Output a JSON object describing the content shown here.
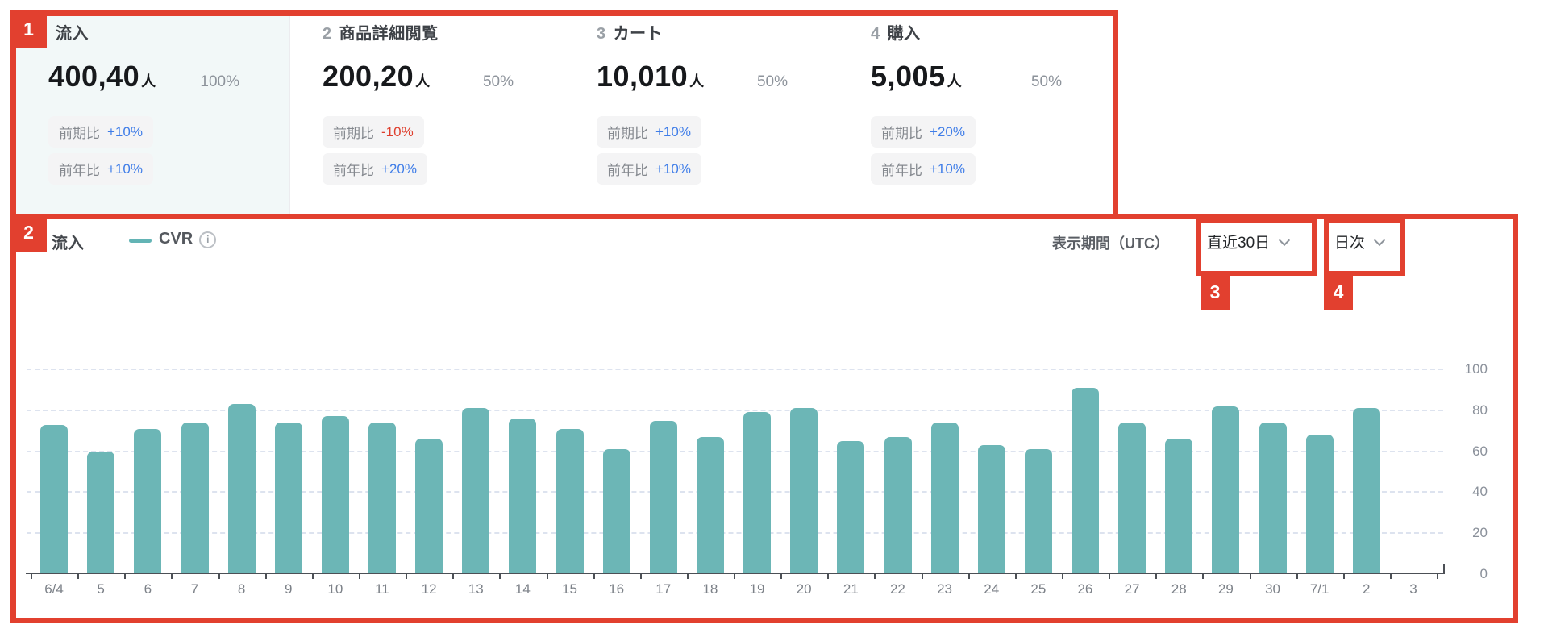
{
  "colors": {
    "annotation_red": "#e2402f",
    "bar_teal": "#6cb6b6",
    "positive_blue": "#3f7de8",
    "negative_red": "#df3f2e",
    "highlight_card_bg": "#f2f8f8",
    "chip_bg": "#f4f4f5"
  },
  "funnel": {
    "steps": [
      {
        "index": "",
        "title": "流入",
        "value": "400,40",
        "unit": "人",
        "rate": "100%",
        "prev_period_label": "前期比",
        "prev_period_value": "+10%",
        "prev_period_trend": "up",
        "prev_year_label": "前年比",
        "prev_year_value": "+10%",
        "prev_year_trend": "up",
        "highlighted": true
      },
      {
        "index": "2",
        "title": "商品詳細閲覧",
        "value": "200,20",
        "unit": "人",
        "rate": "50%",
        "prev_period_label": "前期比",
        "prev_period_value": "-10%",
        "prev_period_trend": "down",
        "prev_year_label": "前年比",
        "prev_year_value": "+20%",
        "prev_year_trend": "up",
        "highlighted": false
      },
      {
        "index": "3",
        "title": "カート",
        "value": "10,010",
        "unit": "人",
        "rate": "50%",
        "prev_period_label": "前期比",
        "prev_period_value": "+10%",
        "prev_period_trend": "up",
        "prev_year_label": "前年比",
        "prev_year_value": "+10%",
        "prev_year_trend": "up",
        "highlighted": false
      },
      {
        "index": "4",
        "title": "購入",
        "value": "5,005",
        "unit": "人",
        "rate": "50%",
        "prev_period_label": "前期比",
        "prev_period_value": "+20%",
        "prev_period_trend": "up",
        "prev_year_label": "前年比",
        "prev_year_value": "+10%",
        "prev_year_trend": "up",
        "highlighted": false
      }
    ]
  },
  "chart_header": {
    "title": "流入",
    "legend_label": "CVR",
    "info_icon": "info-icon",
    "period_label": "表示期間（UTC）",
    "period_dropdown": "直近30日",
    "granularity_dropdown": "日次"
  },
  "chart_data": {
    "type": "bar",
    "series_name": "CVR",
    "categories": [
      "6/4",
      "5",
      "6",
      "7",
      "8",
      "9",
      "10",
      "11",
      "12",
      "13",
      "14",
      "15",
      "16",
      "17",
      "18",
      "19",
      "20",
      "21",
      "22",
      "23",
      "24",
      "25",
      "26",
      "27",
      "28",
      "29",
      "30",
      "7/1",
      "2",
      "3"
    ],
    "values": [
      73,
      60,
      71,
      74,
      83,
      74,
      77,
      74,
      66,
      81,
      76,
      71,
      61,
      75,
      67,
      79,
      81,
      65,
      67,
      74,
      63,
      61,
      91,
      74,
      66,
      82,
      74,
      68,
      81,
      null
    ],
    "title": "流入 CVR",
    "xlabel": "",
    "ylabel": "",
    "ylim": [
      0,
      100
    ],
    "yticks": [
      0,
      20,
      40,
      60,
      80,
      100
    ],
    "grid": "dashed-horizontal",
    "legend_position": "top-left",
    "bar_color": "#6cb6b6",
    "note_last_category_has_no_bar": true
  },
  "annotations": {
    "boxes": [
      {
        "label": "1"
      },
      {
        "label": "2"
      },
      {
        "label": "3"
      },
      {
        "label": "4"
      }
    ]
  }
}
